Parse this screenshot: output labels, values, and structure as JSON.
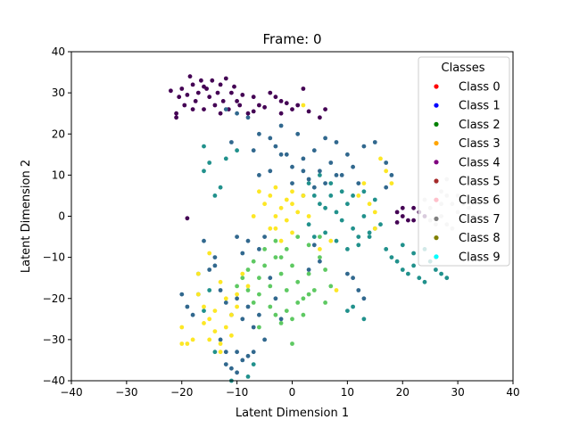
{
  "chart_data": {
    "type": "scatter",
    "title": "Frame: 0",
    "xlabel": "Latent Dimension 1",
    "ylabel": "Latent Dimension 2",
    "xlim": [
      -40,
      40
    ],
    "ylim": [
      -40,
      40
    ],
    "xticks": [
      -40,
      -30,
      -20,
      -10,
      0,
      10,
      20,
      30,
      40
    ],
    "yticks": [
      -40,
      -30,
      -20,
      -10,
      0,
      10,
      20,
      30,
      40
    ],
    "grid": false,
    "legend": {
      "title": "Classes",
      "placement": "top-right",
      "entries": [
        {
          "label": "Class 0",
          "color": "#ff0000"
        },
        {
          "label": "Class 1",
          "color": "#0000ff"
        },
        {
          "label": "Class 2",
          "color": "#008000"
        },
        {
          "label": "Class 3",
          "color": "#ffa500"
        },
        {
          "label": "Class 4",
          "color": "#800080"
        },
        {
          "label": "Class 5",
          "color": "#a52a2a"
        },
        {
          "label": "Class 6",
          "color": "#ffc0cb"
        },
        {
          "label": "Class 7",
          "color": "#808080"
        },
        {
          "label": "Class 8",
          "color": "#808000"
        },
        {
          "label": "Class 9",
          "color": "#00ffff"
        }
      ]
    },
    "series": [
      {
        "color": "#440154",
        "points": [
          [
            -22,
            30.5
          ],
          [
            -21,
            25
          ],
          [
            -20.5,
            29
          ],
          [
            -20,
            31
          ],
          [
            -19.5,
            27
          ],
          [
            -19,
            29.5
          ],
          [
            -18.5,
            34
          ],
          [
            -18,
            32
          ],
          [
            -17.5,
            28
          ],
          [
            -17,
            30
          ],
          [
            -16.5,
            33
          ],
          [
            -16,
            26
          ],
          [
            -15.5,
            31
          ],
          [
            -15,
            29
          ],
          [
            -14.5,
            33
          ],
          [
            -14,
            27
          ],
          [
            -13.5,
            30
          ],
          [
            -13,
            32
          ],
          [
            -12.5,
            28
          ],
          [
            -12,
            33.5
          ],
          [
            -11.5,
            26
          ],
          [
            -11,
            30
          ],
          [
            -10.5,
            31.5
          ],
          [
            -10,
            28
          ],
          [
            -9.5,
            27
          ],
          [
            -9,
            29.5
          ],
          [
            -8,
            25
          ],
          [
            -7,
            29
          ],
          [
            -6,
            27
          ],
          [
            -5,
            26.5
          ],
          [
            -4,
            30
          ],
          [
            -3,
            29
          ],
          [
            -2,
            28
          ],
          [
            -1,
            27.5
          ],
          [
            0,
            26
          ],
          [
            1,
            27
          ],
          [
            2,
            31
          ],
          [
            3,
            25.5
          ],
          [
            5,
            24
          ],
          [
            6,
            26
          ],
          [
            -21,
            24
          ],
          [
            -18,
            26
          ],
          [
            -16,
            31.5
          ],
          [
            -13,
            25
          ],
          [
            -7,
            25.5
          ],
          [
            -2,
            25
          ],
          [
            -19,
            -0.5
          ],
          [
            19,
            1
          ],
          [
            20,
            0
          ],
          [
            21,
            -1
          ],
          [
            22,
            2
          ],
          [
            23,
            1
          ],
          [
            24,
            0
          ],
          [
            19,
            -1.5
          ],
          [
            22,
            -1
          ],
          [
            20,
            2
          ]
        ]
      },
      {
        "color": "#31688e",
        "points": [
          [
            -12,
            26
          ],
          [
            -10,
            25
          ],
          [
            -8,
            24
          ],
          [
            -11,
            18
          ],
          [
            -7,
            16
          ],
          [
            -6,
            20
          ],
          [
            -4,
            19
          ],
          [
            -3,
            17
          ],
          [
            -2,
            22
          ],
          [
            -1,
            15
          ],
          [
            0,
            12
          ],
          [
            1,
            20
          ],
          [
            2,
            14
          ],
          [
            3,
            9
          ],
          [
            4,
            16
          ],
          [
            5,
            11
          ],
          [
            6,
            19
          ],
          [
            7,
            13
          ],
          [
            8,
            18
          ],
          [
            9,
            10
          ],
          [
            10,
            15
          ],
          [
            11,
            12
          ],
          [
            12,
            8
          ],
          [
            13,
            17
          ],
          [
            0,
            8
          ],
          [
            2,
            11
          ],
          [
            4,
            7
          ],
          [
            6,
            8
          ],
          [
            8,
            10
          ],
          [
            -4,
            11
          ],
          [
            -6,
            10
          ],
          [
            -2,
            15
          ],
          [
            17,
            7
          ],
          [
            18,
            10
          ],
          [
            15,
            18
          ],
          [
            17,
            13
          ],
          [
            -15,
            -13
          ],
          [
            -14,
            -10
          ],
          [
            -13,
            -18
          ],
          [
            -12,
            -21
          ],
          [
            -11,
            -24
          ],
          [
            -10,
            -20
          ],
          [
            -9,
            -25
          ],
          [
            -8,
            -22
          ],
          [
            -7,
            -27
          ],
          [
            -6,
            -24
          ],
          [
            -12,
            -33
          ],
          [
            -11,
            -37
          ],
          [
            -10,
            -38
          ],
          [
            -9,
            -35
          ],
          [
            -8,
            -34
          ],
          [
            -7,
            -33
          ],
          [
            -5,
            -30
          ],
          [
            -12,
            -36
          ],
          [
            -10,
            -33
          ],
          [
            -13,
            -30
          ],
          [
            -16,
            -6
          ],
          [
            -14,
            -12
          ],
          [
            -9,
            -9
          ],
          [
            -8,
            -6
          ],
          [
            -18,
            -24
          ],
          [
            -19,
            -22
          ],
          [
            -20,
            -19
          ],
          [
            11,
            -15
          ],
          [
            12,
            -18
          ],
          [
            13,
            -20
          ],
          [
            10,
            -14
          ],
          [
            -3,
            -20
          ],
          [
            -2,
            -25
          ],
          [
            4,
            -7
          ],
          [
            5,
            -11
          ],
          [
            3,
            -13
          ],
          [
            -5,
            -5
          ],
          [
            -6,
            -8
          ],
          [
            -4,
            -15
          ],
          [
            -10,
            -5
          ]
        ]
      },
      {
        "color": "#21918c",
        "points": [
          [
            -16,
            17
          ],
          [
            -15,
            13
          ],
          [
            -14,
            5
          ],
          [
            -13,
            7
          ],
          [
            -16,
            11
          ],
          [
            -17,
            -19
          ],
          [
            -16,
            -23
          ],
          [
            -15,
            -18
          ],
          [
            4,
            5
          ],
          [
            5,
            3
          ],
          [
            6,
            2
          ],
          [
            7,
            5
          ],
          [
            8,
            1
          ],
          [
            9,
            -1
          ],
          [
            10,
            3
          ],
          [
            11,
            -3
          ],
          [
            12,
            -5
          ],
          [
            13,
            0
          ],
          [
            14,
            -4
          ],
          [
            15,
            -3
          ],
          [
            3,
            -2
          ],
          [
            4,
            -5
          ],
          [
            6,
            -4
          ],
          [
            8,
            -6
          ],
          [
            10,
            -8
          ],
          [
            12,
            -7
          ],
          [
            14,
            -5
          ],
          [
            16,
            -2
          ],
          [
            17,
            -8
          ],
          [
            18,
            -10
          ],
          [
            19,
            -11
          ],
          [
            20,
            -13
          ],
          [
            21,
            -14
          ],
          [
            22,
            -12
          ],
          [
            23,
            -15
          ],
          [
            24,
            -16
          ],
          [
            25,
            -11
          ],
          [
            26,
            -13
          ],
          [
            27,
            -14
          ],
          [
            28,
            -15
          ],
          [
            20,
            -7
          ],
          [
            22,
            -9
          ],
          [
            24,
            -8
          ],
          [
            26,
            -10
          ],
          [
            2,
            5
          ],
          [
            3,
            8
          ],
          [
            5,
            10
          ],
          [
            7,
            8
          ],
          [
            9,
            6
          ],
          [
            11,
            5
          ],
          [
            13,
            6
          ],
          [
            15,
            4
          ],
          [
            -17,
            -14
          ],
          [
            -11,
            -40
          ],
          [
            -8,
            -39
          ],
          [
            -14,
            -33
          ],
          [
            -7,
            -36
          ],
          [
            11,
            -22
          ],
          [
            13,
            -25
          ],
          [
            10,
            -23
          ],
          [
            -12,
            14
          ],
          [
            -10,
            16
          ]
        ]
      },
      {
        "color": "#5ec962",
        "points": [
          [
            -9,
            -15
          ],
          [
            -8,
            -18
          ],
          [
            -7,
            -21
          ],
          [
            -6,
            -15
          ],
          [
            -5,
            -12
          ],
          [
            -4,
            -17
          ],
          [
            -3,
            -10
          ],
          [
            -2,
            -14
          ],
          [
            -1,
            -18
          ],
          [
            0,
            -12
          ],
          [
            1,
            -16
          ],
          [
            2,
            -20
          ],
          [
            3,
            -14
          ],
          [
            4,
            -18
          ],
          [
            5,
            -10
          ],
          [
            6,
            -13
          ],
          [
            -7,
            -11
          ],
          [
            -5,
            -8
          ],
          [
            -3,
            -6
          ],
          [
            -1,
            -8
          ],
          [
            1,
            -5
          ],
          [
            3,
            -7
          ],
          [
            5,
            -5
          ],
          [
            -4,
            -22
          ],
          [
            -3,
            -24
          ],
          [
            -2,
            -26
          ],
          [
            -1,
            -23
          ],
          [
            0,
            -25
          ],
          [
            1,
            -21
          ],
          [
            2,
            -24
          ],
          [
            3,
            -19
          ],
          [
            -6,
            -19
          ],
          [
            -8,
            -13
          ],
          [
            0,
            -31
          ],
          [
            6,
            -21
          ],
          [
            7,
            -17
          ],
          [
            -2,
            -10
          ],
          [
            -6,
            -27
          ],
          [
            -10,
            -17
          ]
        ]
      },
      {
        "color": "#fde725",
        "points": [
          [
            -17,
            -19
          ],
          [
            -16,
            -22
          ],
          [
            -15,
            -25
          ],
          [
            -14,
            -28
          ],
          [
            -13,
            -31
          ],
          [
            -12,
            -27
          ],
          [
            -11,
            -24
          ],
          [
            -10,
            -22
          ],
          [
            -12,
            -20
          ],
          [
            -14,
            -23
          ],
          [
            -16,
            -26
          ],
          [
            -13,
            -33
          ],
          [
            -15,
            -30
          ],
          [
            -18,
            -30
          ],
          [
            -19,
            -31
          ],
          [
            -20,
            -27
          ],
          [
            -11,
            -29
          ],
          [
            -10,
            -19
          ],
          [
            -9,
            -14
          ],
          [
            -8,
            -17
          ],
          [
            -17,
            -14
          ],
          [
            -13,
            -16
          ],
          [
            -15,
            -9
          ],
          [
            -20,
            -31
          ],
          [
            -3,
            0
          ],
          [
            -2,
            2
          ],
          [
            -1,
            4
          ],
          [
            0,
            3
          ],
          [
            1,
            1
          ],
          [
            2,
            5
          ],
          [
            3,
            0
          ],
          [
            -4,
            5
          ],
          [
            -5,
            3
          ],
          [
            -6,
            6
          ],
          [
            -3,
            -3
          ],
          [
            -1,
            -1
          ],
          [
            0,
            -4
          ],
          [
            -2,
            -6
          ],
          [
            -4,
            -3
          ],
          [
            -7,
            0
          ],
          [
            -3,
            7
          ],
          [
            0,
            6
          ],
          [
            12,
            5
          ],
          [
            13,
            8
          ],
          [
            14,
            3
          ],
          [
            15,
            1
          ],
          [
            5,
            -8
          ],
          [
            7,
            -6
          ],
          [
            17,
            11
          ],
          [
            18,
            8
          ],
          [
            16,
            14
          ],
          [
            8,
            -18
          ],
          [
            2,
            27
          ],
          [
            15,
            -3
          ]
        ]
      },
      {
        "color": "#d3d3d3",
        "points": [
          [
            25,
            2
          ],
          [
            26,
            4
          ],
          [
            27,
            0
          ],
          [
            28,
            -2
          ],
          [
            29,
            3
          ],
          [
            30,
            1
          ],
          [
            31,
            -1
          ],
          [
            32,
            2
          ],
          [
            33,
            0
          ],
          [
            26,
            -2
          ],
          [
            27,
            3
          ],
          [
            28,
            5
          ],
          [
            24,
            4
          ],
          [
            25,
            -1
          ],
          [
            29,
            -3
          ],
          [
            30,
            5
          ],
          [
            31,
            3
          ],
          [
            26,
            8
          ],
          [
            27,
            6
          ],
          [
            28,
            9
          ]
        ]
      }
    ]
  }
}
